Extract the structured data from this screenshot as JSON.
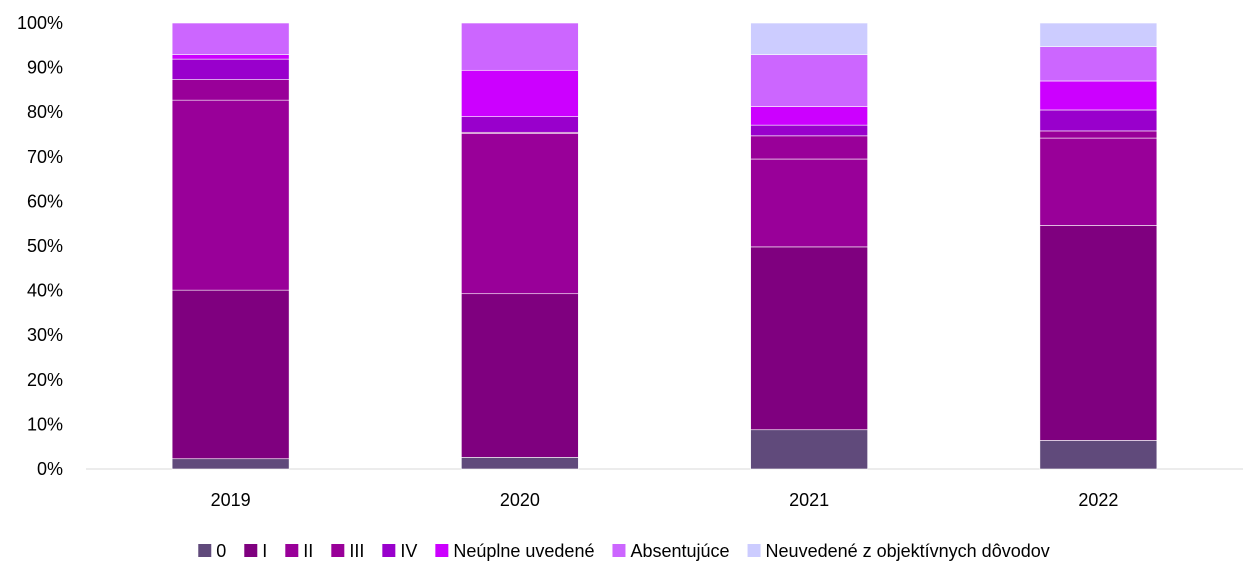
{
  "chart_data": {
    "type": "bar",
    "stacked": true,
    "percent_stacked": true,
    "title": "",
    "xlabel": "",
    "ylabel": "",
    "categories": [
      "2019",
      "2020",
      "2021",
      "2022"
    ],
    "ylim": [
      0,
      100
    ],
    "yticks": [
      "0%",
      "10%",
      "20%",
      "30%",
      "40%",
      "50%",
      "60%",
      "70%",
      "80%",
      "90%",
      "100%"
    ],
    "grid": false,
    "legend_position": "bottom",
    "series": [
      {
        "name": "0",
        "color": "#604a7b",
        "values": [
          2.3,
          2.6,
          8.8,
          6.4
        ]
      },
      {
        "name": "I",
        "color": "#7f007f",
        "values": [
          37.8,
          36.7,
          41.0,
          48.2
        ]
      },
      {
        "name": "II",
        "color": "#990099",
        "values": [
          42.6,
          35.9,
          19.7,
          19.6
        ]
      },
      {
        "name": "III",
        "color": "#990099",
        "values": [
          4.6,
          0.3,
          5.2,
          1.6
        ]
      },
      {
        "name": "IV",
        "color": "#9900cc",
        "values": [
          4.6,
          3.5,
          2.4,
          4.7
        ]
      },
      {
        "name": "Neúplne uvedené",
        "color": "#cc00ff",
        "values": [
          1.0,
          10.4,
          4.2,
          6.5
        ]
      },
      {
        "name": "Absentujúce",
        "color": "#cc66ff",
        "values": [
          7.1,
          10.6,
          11.6,
          7.7
        ]
      },
      {
        "name": "Neuvedené z objektívnych dôvodov",
        "color": "#ccccff",
        "values": [
          0.0,
          0.0,
          7.1,
          5.3
        ]
      }
    ]
  }
}
